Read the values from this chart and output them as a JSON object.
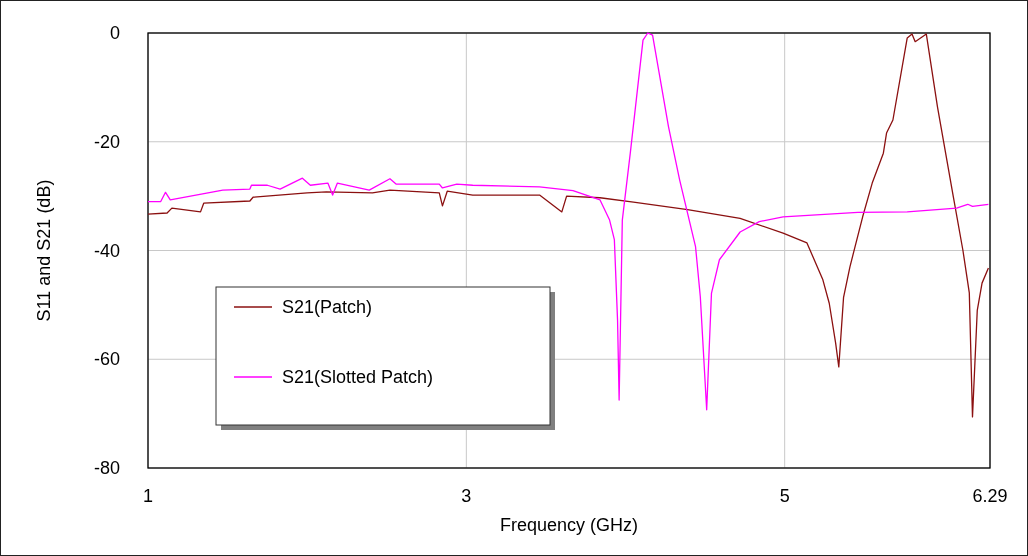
{
  "chart_data": {
    "type": "line",
    "xlabel": "Frequency (GHz)",
    "ylabel": "S11 and S21 (dB)",
    "xlim": [
      1,
      6.29
    ],
    "ylim": [
      -80,
      0
    ],
    "xticks": [
      1,
      3,
      5,
      6.29
    ],
    "yticks": [
      -80,
      -60,
      -40,
      -20,
      0
    ],
    "grid": true,
    "legend": "bottom left",
    "line_style": "solid",
    "series": [
      {
        "name": "S21(Patch)",
        "color": "#8b1010",
        "x": [
          1,
          1.12,
          1.15,
          1.33,
          1.35,
          1.64,
          1.66,
          2.0,
          2.12,
          2.41,
          2.52,
          2.83,
          2.85,
          2.88,
          3.04,
          3.46,
          3.6,
          3.63,
          3.84,
          4.05,
          4.39,
          4.72,
          4.99,
          5.14,
          5.24,
          5.28,
          5.32,
          5.34,
          5.37,
          5.41,
          5.49,
          5.55,
          5.62,
          5.64,
          5.68,
          5.77,
          5.8,
          5.82,
          5.89,
          5.96,
          6.06,
          6.12,
          6.16,
          6.18,
          6.21,
          6.24,
          6.28
        ],
        "values": [
          -33.3,
          -33.1,
          -32.2,
          -32.9,
          -31.3,
          -30.9,
          -30.2,
          -29.4,
          -29.2,
          -29.4,
          -28.9,
          -29.4,
          -31.8,
          -29.1,
          -29.8,
          -29.8,
          -32.9,
          -30,
          -30.3,
          -31.1,
          -32.5,
          -34.1,
          -36.8,
          -38.6,
          -45.4,
          -49.7,
          -57,
          -61.4,
          -48.6,
          -43,
          -33.8,
          -27.6,
          -22.1,
          -18.4,
          -16,
          -0.9,
          -0.2,
          -1.6,
          -0.2,
          -13.6,
          -30.2,
          -40,
          -47.8,
          -70.6,
          -51,
          -46,
          -43.2
        ]
      },
      {
        "name": "S21(Slotted Patch)",
        "color": "#ff00ff",
        "x": [
          1,
          1.08,
          1.11,
          1.14,
          1.47,
          1.64,
          1.65,
          1.75,
          1.83,
          1.97,
          2.02,
          2.13,
          2.16,
          2.19,
          2.39,
          2.52,
          2.56,
          2.83,
          2.85,
          2.94,
          3.04,
          3.46,
          3.67,
          3.84,
          3.9,
          3.93,
          3.95,
          3.96,
          3.98,
          4.03,
          4.11,
          4.14,
          4.17,
          4.27,
          4.34,
          4.44,
          4.47,
          4.51,
          4.54,
          4.59,
          4.72,
          4.84,
          4.99,
          5.46,
          5.77,
          6.08,
          6.15,
          6.18,
          6.28
        ],
        "values": [
          -31,
          -31,
          -29.3,
          -30.7,
          -28.9,
          -28.7,
          -28,
          -28,
          -28.7,
          -26.7,
          -28,
          -27.6,
          -29.8,
          -27.6,
          -28.9,
          -26.8,
          -27.8,
          -27.8,
          -28.5,
          -27.8,
          -28,
          -28.3,
          -29,
          -30.7,
          -34.4,
          -38,
          -52.8,
          -67.5,
          -34.4,
          -22.1,
          -1.3,
          0,
          -0.4,
          -17.2,
          -27,
          -39.3,
          -48.5,
          -69.3,
          -47.9,
          -41.7,
          -36.6,
          -34.7,
          -33.8,
          -33,
          -32.9,
          -32.2,
          -31.5,
          -31.9,
          -31.5
        ]
      }
    ]
  }
}
